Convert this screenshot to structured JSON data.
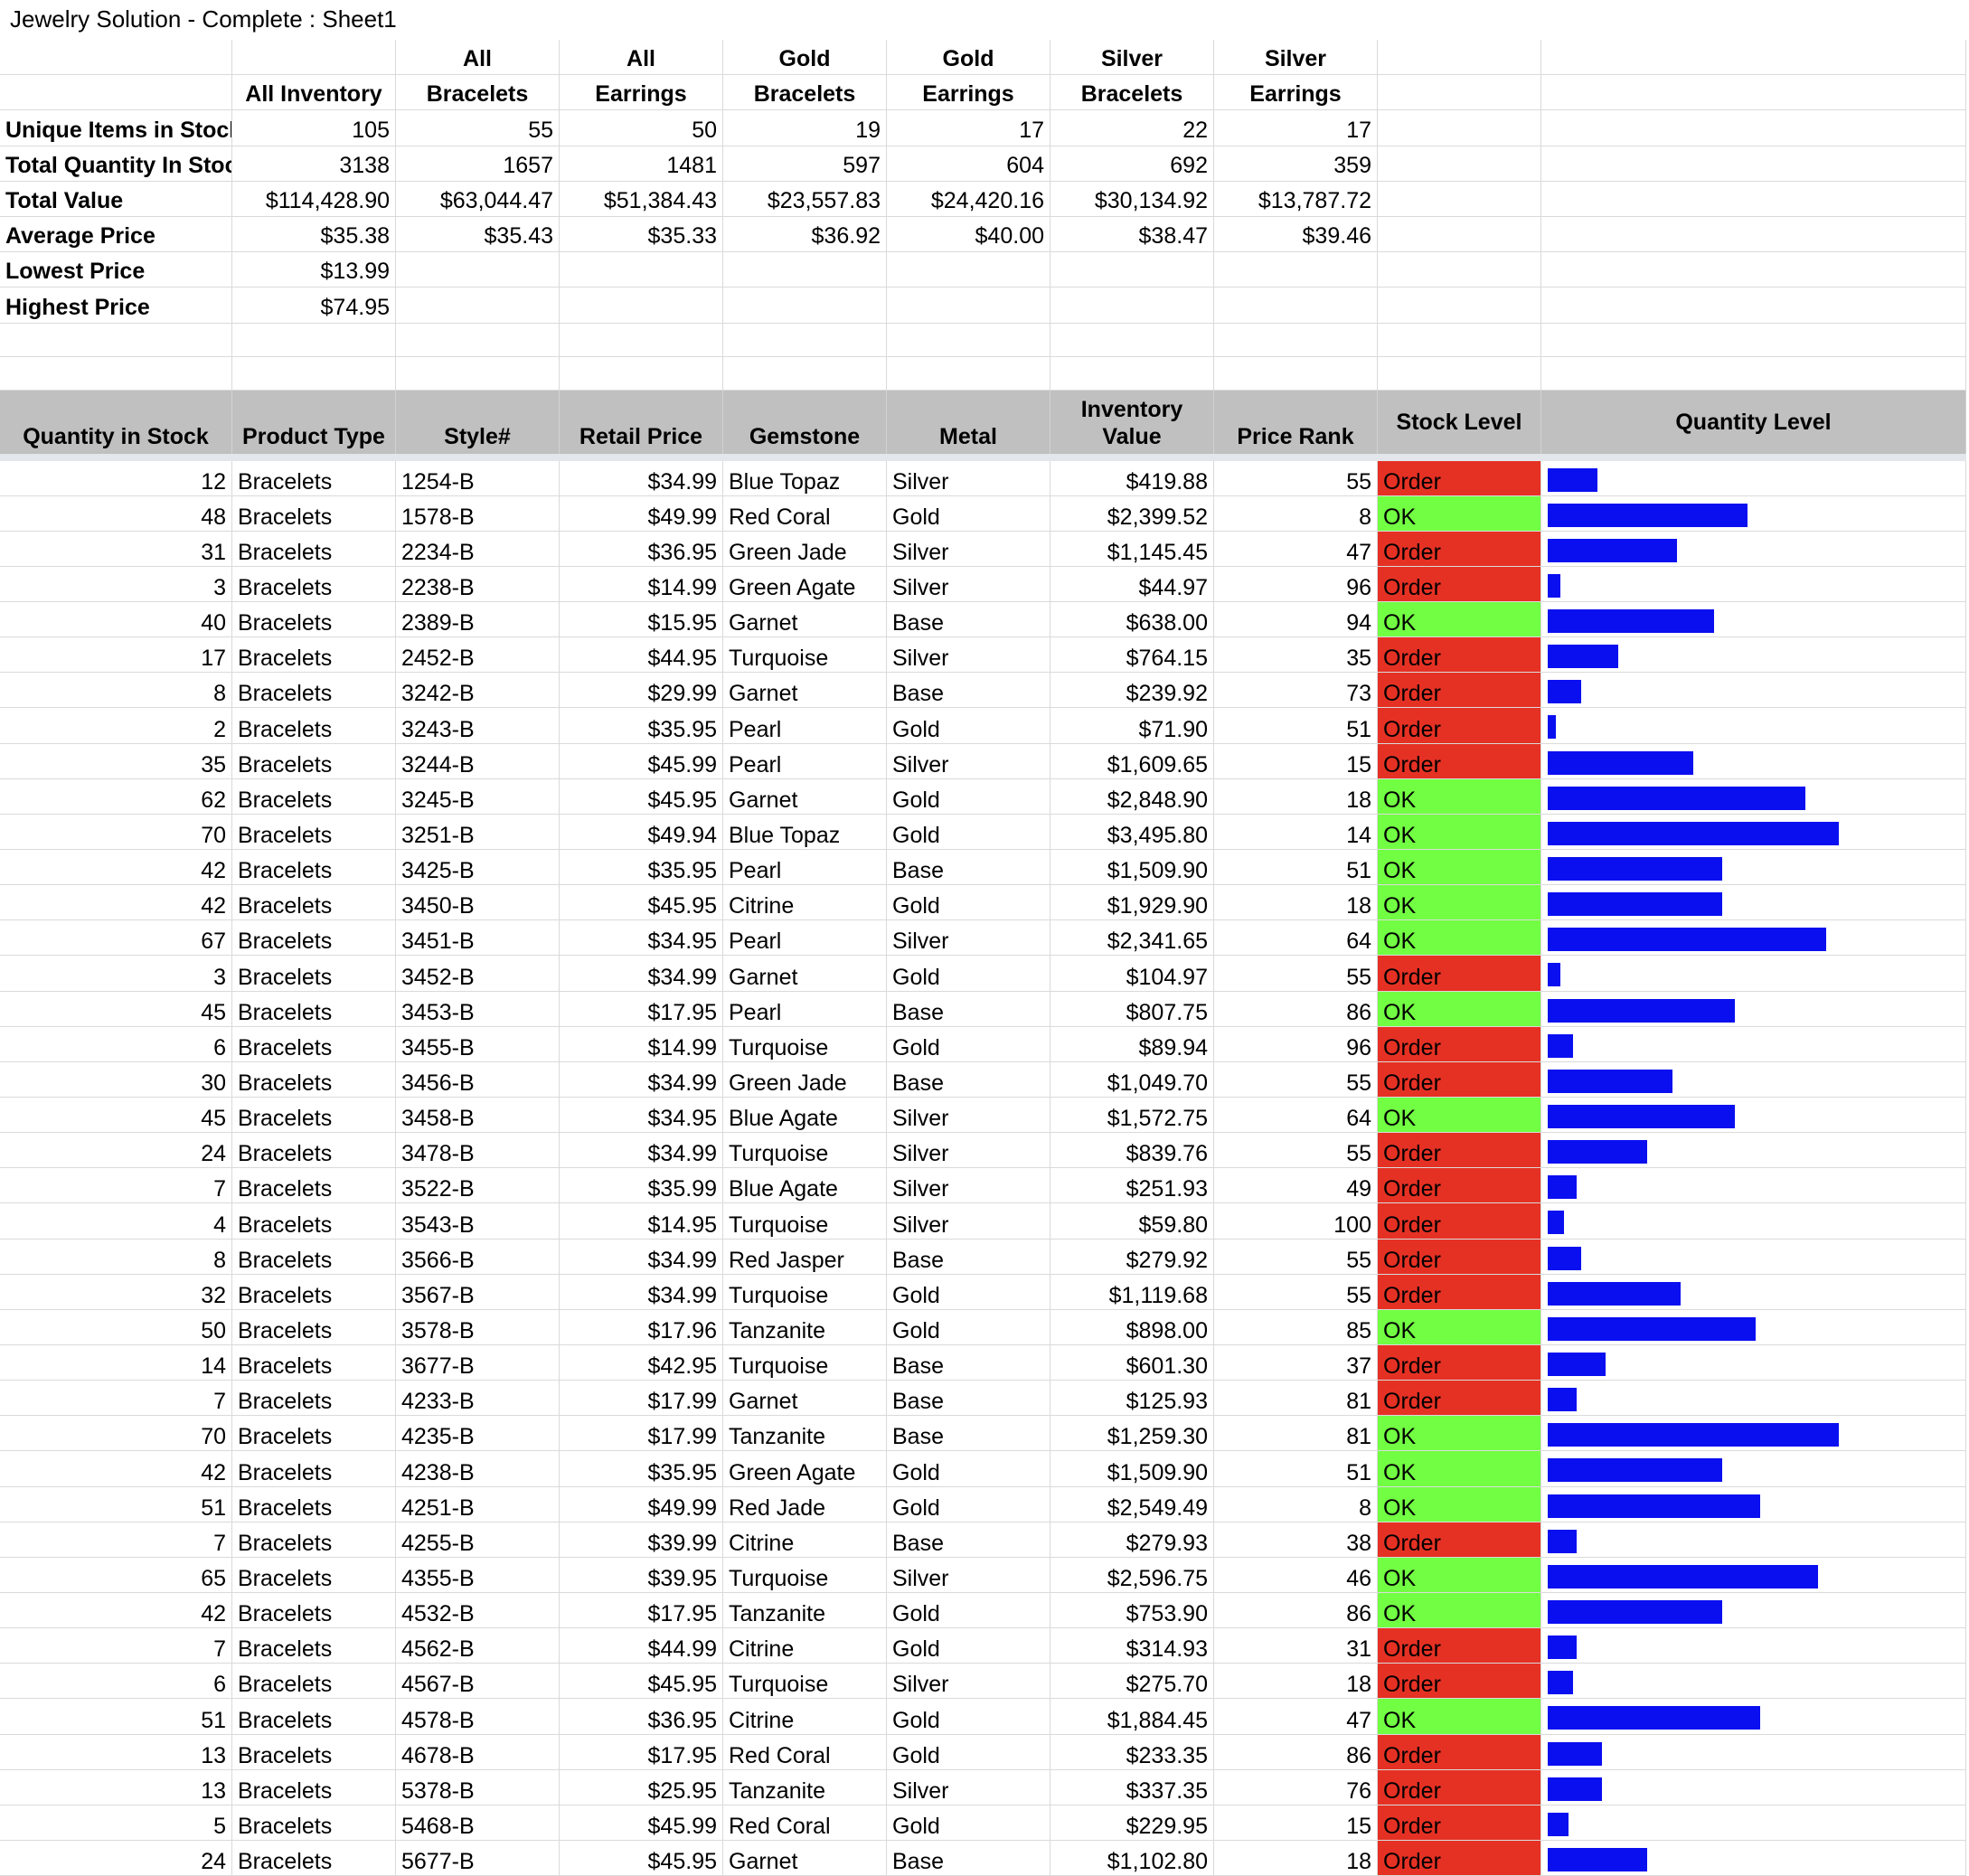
{
  "window": {
    "title": "Jewelry Solution - Complete : Sheet1"
  },
  "colors": {
    "ok": "#72ff43",
    "order": "#e53124",
    "bar": "#0a0ff0",
    "header_bg": "#c0c0c0"
  },
  "summary": {
    "header_top": [
      "",
      "",
      "All",
      "All",
      "Gold",
      "Gold",
      "Silver",
      "Silver",
      "",
      ""
    ],
    "header_bottom": [
      "",
      "All Inventory",
      "Bracelets",
      "Earrings",
      "Bracelets",
      "Earrings",
      "Bracelets",
      "Earrings",
      "",
      ""
    ],
    "rows": [
      {
        "label": "Unique Items in Stock",
        "values": [
          "105",
          "55",
          "50",
          "19",
          "17",
          "22",
          "17"
        ]
      },
      {
        "label": "Total Quantity In Stock",
        "values": [
          "3138",
          "1657",
          "1481",
          "597",
          "604",
          "692",
          "359"
        ]
      },
      {
        "label": "Total Value",
        "values": [
          "$114,428.90",
          "$63,044.47",
          "$51,384.43",
          "$23,557.83",
          "$24,420.16",
          "$30,134.92",
          "$13,787.72"
        ]
      },
      {
        "label": "Average Price",
        "values": [
          "$35.38",
          "$35.43",
          "$35.33",
          "$36.92",
          "$40.00",
          "$38.47",
          "$39.46"
        ]
      },
      {
        "label": "Lowest Price",
        "values": [
          "$13.99",
          "",
          "",
          "",
          "",
          "",
          ""
        ]
      },
      {
        "label": "Highest Price",
        "values": [
          "$74.95",
          "",
          "",
          "",
          "",
          "",
          ""
        ]
      }
    ]
  },
  "table": {
    "columns": [
      {
        "key": "qty",
        "line1": "",
        "line2": "Quantity in Stock"
      },
      {
        "key": "type",
        "line1": "",
        "line2": "Product Type"
      },
      {
        "key": "style",
        "line1": "",
        "line2": "Style#"
      },
      {
        "key": "price",
        "line1": "",
        "line2": "Retail Price"
      },
      {
        "key": "gem",
        "line1": "",
        "line2": "Gemstone"
      },
      {
        "key": "metal",
        "line1": "",
        "line2": "Metal"
      },
      {
        "key": "value",
        "line1": "Inventory",
        "line2": "Value"
      },
      {
        "key": "rank",
        "line1": "",
        "line2": "Price Rank"
      },
      {
        "key": "stock",
        "line1": "Stock Level",
        "line2": ""
      },
      {
        "key": "level",
        "line1": "Quantity Level",
        "line2": ""
      }
    ],
    "max_quantity": 70,
    "rows": [
      {
        "qty": "12",
        "type": "Bracelets",
        "style": "1254-B",
        "price": "$34.99",
        "gem": "Blue Topaz",
        "metal": "Silver",
        "value": "$419.88",
        "rank": "55",
        "stock": "Order"
      },
      {
        "qty": "48",
        "type": "Bracelets",
        "style": "1578-B",
        "price": "$49.99",
        "gem": "Red Coral",
        "metal": "Gold",
        "value": "$2,399.52",
        "rank": "8",
        "stock": "OK"
      },
      {
        "qty": "31",
        "type": "Bracelets",
        "style": "2234-B",
        "price": "$36.95",
        "gem": "Green Jade",
        "metal": "Silver",
        "value": "$1,145.45",
        "rank": "47",
        "stock": "Order"
      },
      {
        "qty": "3",
        "type": "Bracelets",
        "style": "2238-B",
        "price": "$14.99",
        "gem": "Green Agate",
        "metal": "Silver",
        "value": "$44.97",
        "rank": "96",
        "stock": "Order"
      },
      {
        "qty": "40",
        "type": "Bracelets",
        "style": "2389-B",
        "price": "$15.95",
        "gem": "Garnet",
        "metal": "Base",
        "value": "$638.00",
        "rank": "94",
        "stock": "OK"
      },
      {
        "qty": "17",
        "type": "Bracelets",
        "style": "2452-B",
        "price": "$44.95",
        "gem": "Turquoise",
        "metal": "Silver",
        "value": "$764.15",
        "rank": "35",
        "stock": "Order"
      },
      {
        "qty": "8",
        "type": "Bracelets",
        "style": "3242-B",
        "price": "$29.99",
        "gem": "Garnet",
        "metal": "Base",
        "value": "$239.92",
        "rank": "73",
        "stock": "Order"
      },
      {
        "qty": "2",
        "type": "Bracelets",
        "style": "3243-B",
        "price": "$35.95",
        "gem": "Pearl",
        "metal": "Gold",
        "value": "$71.90",
        "rank": "51",
        "stock": "Order"
      },
      {
        "qty": "35",
        "type": "Bracelets",
        "style": "3244-B",
        "price": "$45.99",
        "gem": "Pearl",
        "metal": "Silver",
        "value": "$1,609.65",
        "rank": "15",
        "stock": "Order"
      },
      {
        "qty": "62",
        "type": "Bracelets",
        "style": "3245-B",
        "price": "$45.95",
        "gem": "Garnet",
        "metal": "Gold",
        "value": "$2,848.90",
        "rank": "18",
        "stock": "OK"
      },
      {
        "qty": "70",
        "type": "Bracelets",
        "style": "3251-B",
        "price": "$49.94",
        "gem": "Blue Topaz",
        "metal": "Gold",
        "value": "$3,495.80",
        "rank": "14",
        "stock": "OK"
      },
      {
        "qty": "42",
        "type": "Bracelets",
        "style": "3425-B",
        "price": "$35.95",
        "gem": "Pearl",
        "metal": "Base",
        "value": "$1,509.90",
        "rank": "51",
        "stock": "OK"
      },
      {
        "qty": "42",
        "type": "Bracelets",
        "style": "3450-B",
        "price": "$45.95",
        "gem": "Citrine",
        "metal": "Gold",
        "value": "$1,929.90",
        "rank": "18",
        "stock": "OK"
      },
      {
        "qty": "67",
        "type": "Bracelets",
        "style": "3451-B",
        "price": "$34.95",
        "gem": "Pearl",
        "metal": "Silver",
        "value": "$2,341.65",
        "rank": "64",
        "stock": "OK"
      },
      {
        "qty": "3",
        "type": "Bracelets",
        "style": "3452-B",
        "price": "$34.99",
        "gem": "Garnet",
        "metal": "Gold",
        "value": "$104.97",
        "rank": "55",
        "stock": "Order"
      },
      {
        "qty": "45",
        "type": "Bracelets",
        "style": "3453-B",
        "price": "$17.95",
        "gem": "Pearl",
        "metal": "Base",
        "value": "$807.75",
        "rank": "86",
        "stock": "OK"
      },
      {
        "qty": "6",
        "type": "Bracelets",
        "style": "3455-B",
        "price": "$14.99",
        "gem": "Turquoise",
        "metal": "Gold",
        "value": "$89.94",
        "rank": "96",
        "stock": "Order"
      },
      {
        "qty": "30",
        "type": "Bracelets",
        "style": "3456-B",
        "price": "$34.99",
        "gem": "Green Jade",
        "metal": "Base",
        "value": "$1,049.70",
        "rank": "55",
        "stock": "Order"
      },
      {
        "qty": "45",
        "type": "Bracelets",
        "style": "3458-B",
        "price": "$34.95",
        "gem": "Blue Agate",
        "metal": "Silver",
        "value": "$1,572.75",
        "rank": "64",
        "stock": "OK"
      },
      {
        "qty": "24",
        "type": "Bracelets",
        "style": "3478-B",
        "price": "$34.99",
        "gem": "Turquoise",
        "metal": "Silver",
        "value": "$839.76",
        "rank": "55",
        "stock": "Order"
      },
      {
        "qty": "7",
        "type": "Bracelets",
        "style": "3522-B",
        "price": "$35.99",
        "gem": "Blue Agate",
        "metal": "Silver",
        "value": "$251.93",
        "rank": "49",
        "stock": "Order"
      },
      {
        "qty": "4",
        "type": "Bracelets",
        "style": "3543-B",
        "price": "$14.95",
        "gem": "Turquoise",
        "metal": "Silver",
        "value": "$59.80",
        "rank": "100",
        "stock": "Order"
      },
      {
        "qty": "8",
        "type": "Bracelets",
        "style": "3566-B",
        "price": "$34.99",
        "gem": "Red Jasper",
        "metal": "Base",
        "value": "$279.92",
        "rank": "55",
        "stock": "Order"
      },
      {
        "qty": "32",
        "type": "Bracelets",
        "style": "3567-B",
        "price": "$34.99",
        "gem": "Turquoise",
        "metal": "Gold",
        "value": "$1,119.68",
        "rank": "55",
        "stock": "Order"
      },
      {
        "qty": "50",
        "type": "Bracelets",
        "style": "3578-B",
        "price": "$17.96",
        "gem": "Tanzanite",
        "metal": "Gold",
        "value": "$898.00",
        "rank": "85",
        "stock": "OK"
      },
      {
        "qty": "14",
        "type": "Bracelets",
        "style": "3677-B",
        "price": "$42.95",
        "gem": "Turquoise",
        "metal": "Base",
        "value": "$601.30",
        "rank": "37",
        "stock": "Order"
      },
      {
        "qty": "7",
        "type": "Bracelets",
        "style": "4233-B",
        "price": "$17.99",
        "gem": "Garnet",
        "metal": "Base",
        "value": "$125.93",
        "rank": "81",
        "stock": "Order"
      },
      {
        "qty": "70",
        "type": "Bracelets",
        "style": "4235-B",
        "price": "$17.99",
        "gem": "Tanzanite",
        "metal": "Base",
        "value": "$1,259.30",
        "rank": "81",
        "stock": "OK"
      },
      {
        "qty": "42",
        "type": "Bracelets",
        "style": "4238-B",
        "price": "$35.95",
        "gem": "Green Agate",
        "metal": "Gold",
        "value": "$1,509.90",
        "rank": "51",
        "stock": "OK"
      },
      {
        "qty": "51",
        "type": "Bracelets",
        "style": "4251-B",
        "price": "$49.99",
        "gem": "Red Jade",
        "metal": "Gold",
        "value": "$2,549.49",
        "rank": "8",
        "stock": "OK"
      },
      {
        "qty": "7",
        "type": "Bracelets",
        "style": "4255-B",
        "price": "$39.99",
        "gem": "Citrine",
        "metal": "Base",
        "value": "$279.93",
        "rank": "38",
        "stock": "Order"
      },
      {
        "qty": "65",
        "type": "Bracelets",
        "style": "4355-B",
        "price": "$39.95",
        "gem": "Turquoise",
        "metal": "Silver",
        "value": "$2,596.75",
        "rank": "46",
        "stock": "OK"
      },
      {
        "qty": "42",
        "type": "Bracelets",
        "style": "4532-B",
        "price": "$17.95",
        "gem": "Tanzanite",
        "metal": "Gold",
        "value": "$753.90",
        "rank": "86",
        "stock": "OK"
      },
      {
        "qty": "7",
        "type": "Bracelets",
        "style": "4562-B",
        "price": "$44.99",
        "gem": "Citrine",
        "metal": "Gold",
        "value": "$314.93",
        "rank": "31",
        "stock": "Order"
      },
      {
        "qty": "6",
        "type": "Bracelets",
        "style": "4567-B",
        "price": "$45.95",
        "gem": "Turquoise",
        "metal": "Silver",
        "value": "$275.70",
        "rank": "18",
        "stock": "Order"
      },
      {
        "qty": "51",
        "type": "Bracelets",
        "style": "4578-B",
        "price": "$36.95",
        "gem": "Citrine",
        "metal": "Gold",
        "value": "$1,884.45",
        "rank": "47",
        "stock": "OK"
      },
      {
        "qty": "13",
        "type": "Bracelets",
        "style": "4678-B",
        "price": "$17.95",
        "gem": "Red Coral",
        "metal": "Gold",
        "value": "$233.35",
        "rank": "86",
        "stock": "Order"
      },
      {
        "qty": "13",
        "type": "Bracelets",
        "style": "5378-B",
        "price": "$25.95",
        "gem": "Tanzanite",
        "metal": "Silver",
        "value": "$337.35",
        "rank": "76",
        "stock": "Order"
      },
      {
        "qty": "5",
        "type": "Bracelets",
        "style": "5468-B",
        "price": "$45.99",
        "gem": "Red Coral",
        "metal": "Gold",
        "value": "$229.95",
        "rank": "15",
        "stock": "Order"
      },
      {
        "qty": "24",
        "type": "Bracelets",
        "style": "5677-B",
        "price": "$45.95",
        "gem": "Garnet",
        "metal": "Base",
        "value": "$1,102.80",
        "rank": "18",
        "stock": "Order"
      }
    ]
  }
}
